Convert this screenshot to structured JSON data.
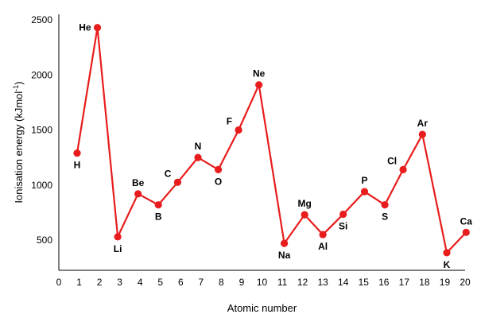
{
  "chart_data": {
    "type": "line",
    "title": "",
    "xlabel": "Atomic number",
    "ylabel_main": "Ionisation energy (kJmol",
    "ylabel_sup": "-1",
    "ylabel_end": ")",
    "xlim": [
      0,
      20
    ],
    "ylim": [
      300,
      2500
    ],
    "xticks": [
      0,
      1,
      2,
      3,
      4,
      5,
      6,
      7,
      8,
      9,
      10,
      11,
      12,
      13,
      14,
      15,
      16,
      17,
      18,
      19,
      20
    ],
    "yticks": [
      500,
      1000,
      1500,
      2000,
      2500
    ],
    "grid": false,
    "line_color": "#e81c1c",
    "series": [
      {
        "points": [
          {
            "x": 0.9,
            "y": 1290,
            "label": "H",
            "pos": "below"
          },
          {
            "x": 1.9,
            "y": 2430,
            "label": "He",
            "pos": "left"
          },
          {
            "x": 2.9,
            "y": 530,
            "label": "Li",
            "pos": "below"
          },
          {
            "x": 3.9,
            "y": 920,
            "label": "Be",
            "pos": "above"
          },
          {
            "x": 4.9,
            "y": 820,
            "label": "B",
            "pos": "below"
          },
          {
            "x": 5.85,
            "y": 1025,
            "label": "C",
            "pos": "above-left"
          },
          {
            "x": 6.85,
            "y": 1250,
            "label": "N",
            "pos": "above"
          },
          {
            "x": 7.85,
            "y": 1140,
            "label": "O",
            "pos": "below"
          },
          {
            "x": 8.85,
            "y": 1500,
            "label": "F",
            "pos": "above-left"
          },
          {
            "x": 9.85,
            "y": 1910,
            "label": "Ne",
            "pos": "above"
          },
          {
            "x": 11.1,
            "y": 470,
            "label": "Na",
            "pos": "below"
          },
          {
            "x": 12.1,
            "y": 730,
            "label": "Mg",
            "pos": "above"
          },
          {
            "x": 13.0,
            "y": 550,
            "label": "Al",
            "pos": "below"
          },
          {
            "x": 14.0,
            "y": 735,
            "label": "Si",
            "pos": "below"
          },
          {
            "x": 15.05,
            "y": 940,
            "label": "P",
            "pos": "above"
          },
          {
            "x": 16.05,
            "y": 820,
            "label": "S",
            "pos": "below"
          },
          {
            "x": 16.95,
            "y": 1140,
            "label": "Cl",
            "pos": "above-left"
          },
          {
            "x": 17.9,
            "y": 1460,
            "label": "Ar",
            "pos": "above"
          },
          {
            "x": 19.1,
            "y": 385,
            "label": "K",
            "pos": "below"
          },
          {
            "x": 20.05,
            "y": 570,
            "label": "Ca",
            "pos": "above"
          }
        ]
      }
    ]
  }
}
